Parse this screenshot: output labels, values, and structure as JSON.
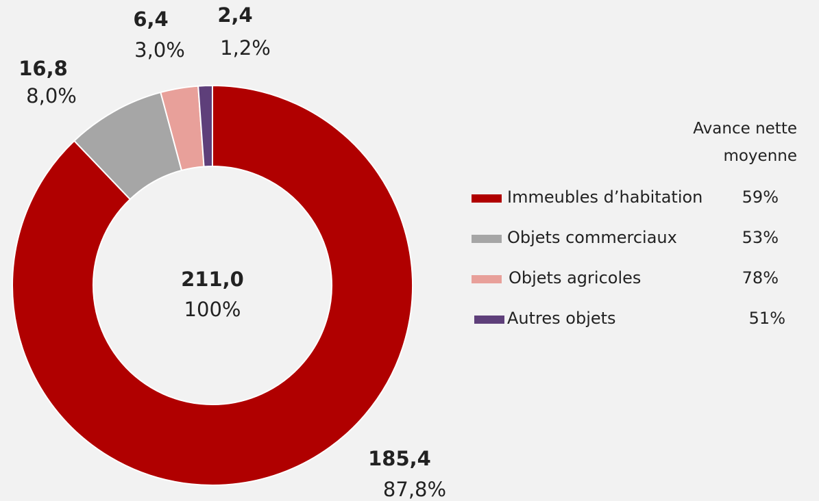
{
  "chart_data": {
    "type": "donut",
    "categories": [
      "Immeubles d’habitation",
      "Objets commerciaux",
      "Objets agricoles",
      "Autres objets"
    ],
    "values": [
      185.4,
      16.8,
      6.4,
      2.4
    ],
    "value_labels": [
      "185,4",
      "16,8",
      "6,4",
      "2,4"
    ],
    "shares": [
      87.8,
      8.0,
      3.0,
      1.2
    ],
    "share_labels": [
      "87,8%",
      "8,0%",
      "3,0%",
      "1,2%"
    ],
    "colors": [
      "#b00000",
      "#a6a6a6",
      "#e8a09a",
      "#5e3f7a"
    ],
    "total": {
      "value": 211.0,
      "label": "211,0"
    },
    "total_share": {
      "value": 100,
      "label": "100%"
    },
    "legend_title": "Avance nette moyenne",
    "advance": [
      59,
      53,
      78,
      51
    ],
    "advance_labels": [
      "59%",
      "53%",
      "78%",
      "51%"
    ]
  }
}
